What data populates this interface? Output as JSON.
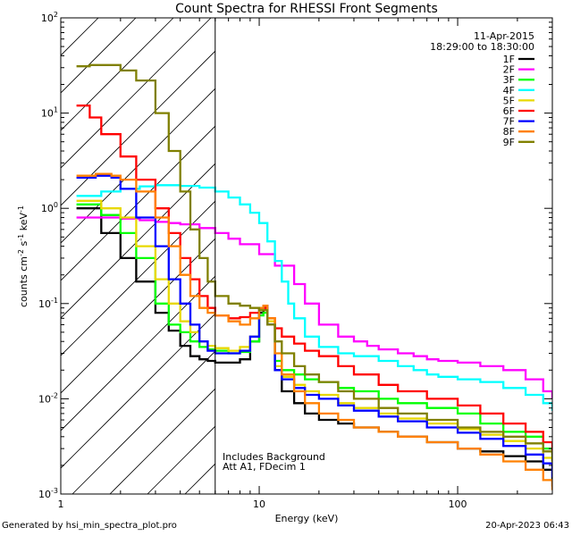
{
  "chart_data": {
    "type": "line",
    "title": "Count Spectra for RHESSI Front Segments",
    "xlabel": "Energy (keV)",
    "ylabel": "counts cm^-2 s^-1 keV^-1",
    "x_scale": "log",
    "y_scale": "log",
    "xlim": [
      1,
      300
    ],
    "ylim": [
      0.001,
      100
    ],
    "x_ticks": [
      {
        "value": 1,
        "label": "1"
      },
      {
        "value": 10,
        "label": "10"
      },
      {
        "value": 100,
        "label": "100"
      }
    ],
    "y_ticks": [
      {
        "value": 0.001,
        "base": "10",
        "exp": "-3"
      },
      {
        "value": 0.01,
        "base": "10",
        "exp": "-2"
      },
      {
        "value": 0.1,
        "base": "10",
        "exp": "-1"
      },
      {
        "value": 1,
        "base": "10",
        "exp": "0"
      },
      {
        "value": 10,
        "base": "10",
        "exp": "1"
      },
      {
        "value": 100,
        "base": "10",
        "exp": "2"
      }
    ],
    "date": "11-Apr-2015",
    "time_range": "18:29:00 to 18:30:00",
    "notes": [
      "Includes Background",
      "Att A1, FDecim 1"
    ],
    "shaded_region_xmax": 6,
    "series": [
      {
        "name": "1F",
        "color": "#000000",
        "x": [
          1.2,
          1.6,
          2.0,
          2.4,
          3.0,
          3.5,
          4.0,
          4.5,
          5.0,
          5.5,
          6.0,
          7.0,
          8.0,
          9.0,
          10.0,
          10.5,
          11.0,
          12.0,
          13.0,
          15.0,
          17.0,
          20.0,
          25.0,
          30.0,
          40.0,
          50.0,
          70.0,
          100.0,
          130.0,
          170.0,
          220.0,
          270.0,
          300.0
        ],
        "y": [
          1.0,
          0.55,
          0.3,
          0.17,
          0.08,
          0.052,
          0.036,
          0.028,
          0.026,
          0.025,
          0.024,
          0.024,
          0.026,
          0.04,
          0.08,
          0.085,
          0.06,
          0.02,
          0.012,
          0.009,
          0.007,
          0.006,
          0.0055,
          0.005,
          0.0045,
          0.004,
          0.0035,
          0.003,
          0.0028,
          0.0025,
          0.0022,
          0.0018,
          0.0012
        ]
      },
      {
        "name": "2F",
        "color": "#ff00ff",
        "x": [
          1.2,
          1.5,
          2.0,
          2.5,
          3.0,
          3.5,
          4.0,
          5.0,
          6.0,
          7.0,
          8.0,
          10.0,
          12.0,
          15.0,
          17.0,
          20.0,
          25.0,
          30.0,
          35.0,
          40.0,
          50.0,
          60.0,
          70.0,
          80.0,
          100.0,
          130.0,
          170.0,
          220.0,
          270.0,
          300.0
        ],
        "y": [
          0.8,
          0.8,
          0.78,
          0.75,
          0.72,
          0.7,
          0.68,
          0.62,
          0.55,
          0.48,
          0.42,
          0.33,
          0.25,
          0.16,
          0.1,
          0.06,
          0.045,
          0.04,
          0.036,
          0.033,
          0.03,
          0.028,
          0.026,
          0.025,
          0.024,
          0.022,
          0.02,
          0.016,
          0.012,
          0.01
        ]
      },
      {
        "name": "3F",
        "color": "#00ff00",
        "x": [
          1.2,
          1.6,
          2.0,
          2.4,
          3.0,
          3.5,
          4.0,
          4.5,
          5.0,
          5.5,
          6.0,
          7.0,
          8.0,
          9.0,
          10.0,
          10.5,
          11.0,
          12.0,
          13.0,
          15.0,
          17.0,
          20.0,
          25.0,
          30.0,
          40.0,
          50.0,
          70.0,
          100.0,
          130.0,
          170.0,
          220.0,
          270.0,
          300.0
        ],
        "y": [
          1.1,
          0.85,
          0.55,
          0.3,
          0.1,
          0.06,
          0.05,
          0.04,
          0.035,
          0.033,
          0.032,
          0.03,
          0.031,
          0.04,
          0.075,
          0.08,
          0.06,
          0.025,
          0.02,
          0.018,
          0.016,
          0.015,
          0.013,
          0.012,
          0.01,
          0.009,
          0.008,
          0.007,
          0.0055,
          0.0045,
          0.004,
          0.003,
          0.0022
        ]
      },
      {
        "name": "4F",
        "color": "#00ffff",
        "x": [
          1.2,
          1.6,
          2.0,
          2.5,
          3.0,
          3.5,
          4.0,
          5.0,
          6.0,
          7.0,
          8.0,
          9.0,
          10.0,
          11.0,
          12.0,
          13.0,
          14.0,
          15.0,
          17.0,
          20.0,
          25.0,
          30.0,
          40.0,
          50.0,
          60.0,
          70.0,
          80.0,
          100.0,
          130.0,
          170.0,
          220.0,
          270.0,
          300.0
        ],
        "y": [
          1.35,
          1.5,
          1.6,
          1.7,
          1.75,
          1.75,
          1.72,
          1.65,
          1.5,
          1.3,
          1.1,
          0.9,
          0.7,
          0.45,
          0.28,
          0.17,
          0.1,
          0.07,
          0.045,
          0.035,
          0.03,
          0.028,
          0.025,
          0.022,
          0.02,
          0.018,
          0.017,
          0.016,
          0.015,
          0.013,
          0.011,
          0.009,
          0.0075
        ]
      },
      {
        "name": "5F",
        "color": "#e8d800",
        "x": [
          1.2,
          1.6,
          2.0,
          2.4,
          3.0,
          3.5,
          4.0,
          4.5,
          5.0,
          5.5,
          6.0,
          7.0,
          8.0,
          9.0,
          10.0,
          10.5,
          11.0,
          12.0,
          13.0,
          15.0,
          17.0,
          20.0,
          25.0,
          30.0,
          40.0,
          50.0,
          70.0,
          100.0,
          130.0,
          170.0,
          220.0,
          270.0,
          300.0
        ],
        "y": [
          1.2,
          1.0,
          0.8,
          0.4,
          0.18,
          0.1,
          0.065,
          0.05,
          0.04,
          0.036,
          0.034,
          0.032,
          0.035,
          0.045,
          0.085,
          0.09,
          0.065,
          0.022,
          0.017,
          0.014,
          0.012,
          0.011,
          0.009,
          0.008,
          0.007,
          0.0062,
          0.0055,
          0.0048,
          0.0042,
          0.0036,
          0.003,
          0.0024,
          0.0018
        ]
      },
      {
        "name": "6F",
        "color": "#ff0000",
        "x": [
          1.2,
          1.4,
          1.6,
          2.0,
          2.4,
          3.0,
          3.5,
          4.0,
          4.5,
          5.0,
          5.5,
          6.0,
          7.0,
          8.0,
          9.0,
          10.0,
          11.0,
          12.0,
          13.0,
          15.0,
          17.0,
          20.0,
          25.0,
          30.0,
          40.0,
          50.0,
          70.0,
          100.0,
          130.0,
          170.0,
          220.0,
          270.0,
          300.0
        ],
        "y": [
          12.0,
          9.0,
          6.0,
          3.5,
          2.0,
          1.0,
          0.55,
          0.3,
          0.18,
          0.12,
          0.09,
          0.075,
          0.07,
          0.072,
          0.08,
          0.09,
          0.07,
          0.055,
          0.045,
          0.038,
          0.032,
          0.028,
          0.022,
          0.018,
          0.014,
          0.012,
          0.01,
          0.0085,
          0.007,
          0.0055,
          0.0045,
          0.0035,
          0.0026
        ]
      },
      {
        "name": "7F",
        "color": "#0000ff",
        "x": [
          1.2,
          1.5,
          1.8,
          2.0,
          2.4,
          3.0,
          3.5,
          4.0,
          4.5,
          5.0,
          5.5,
          6.0,
          7.0,
          8.0,
          9.0,
          10.0,
          10.5,
          11.0,
          12.0,
          13.0,
          15.0,
          17.0,
          20.0,
          25.0,
          30.0,
          40.0,
          50.0,
          70.0,
          100.0,
          130.0,
          170.0,
          220.0,
          270.0,
          300.0
        ],
        "y": [
          2.1,
          2.2,
          2.1,
          1.6,
          0.8,
          0.4,
          0.18,
          0.1,
          0.06,
          0.04,
          0.032,
          0.03,
          0.03,
          0.032,
          0.045,
          0.09,
          0.095,
          0.06,
          0.02,
          0.016,
          0.013,
          0.011,
          0.01,
          0.0085,
          0.0075,
          0.0065,
          0.0058,
          0.005,
          0.0044,
          0.0038,
          0.0032,
          0.0026,
          0.0021,
          0.0015
        ]
      },
      {
        "name": "8F",
        "color": "#ff8000",
        "x": [
          1.2,
          1.5,
          1.8,
          2.0,
          2.4,
          3.0,
          3.5,
          4.0,
          4.5,
          5.0,
          5.5,
          6.0,
          7.0,
          8.0,
          9.0,
          10.0,
          10.5,
          11.0,
          12.0,
          13.0,
          15.0,
          17.0,
          20.0,
          25.0,
          30.0,
          40.0,
          50.0,
          70.0,
          100.0,
          130.0,
          170.0,
          220.0,
          270.0,
          300.0
        ],
        "y": [
          2.2,
          2.3,
          2.2,
          2.0,
          1.5,
          0.8,
          0.4,
          0.2,
          0.12,
          0.09,
          0.08,
          0.075,
          0.065,
          0.06,
          0.07,
          0.09,
          0.095,
          0.07,
          0.03,
          0.018,
          0.012,
          0.009,
          0.007,
          0.006,
          0.005,
          0.0045,
          0.004,
          0.0035,
          0.003,
          0.0026,
          0.0022,
          0.0018,
          0.0014,
          0.0011
        ]
      },
      {
        "name": "9F",
        "color": "#808000",
        "x": [
          1.2,
          1.4,
          1.6,
          2.0,
          2.4,
          3.0,
          3.5,
          4.0,
          4.5,
          5.0,
          5.5,
          6.0,
          7.0,
          8.0,
          9.0,
          10.0,
          11.0,
          12.0,
          13.0,
          15.0,
          17.0,
          20.0,
          25.0,
          30.0,
          40.0,
          50.0,
          70.0,
          100.0,
          130.0,
          170.0,
          220.0,
          270.0,
          300.0
        ],
        "y": [
          31.0,
          32.0,
          32.0,
          28.0,
          22.0,
          10.0,
          4.0,
          1.5,
          0.6,
          0.3,
          0.17,
          0.12,
          0.1,
          0.095,
          0.09,
          0.085,
          0.06,
          0.04,
          0.03,
          0.022,
          0.018,
          0.015,
          0.012,
          0.01,
          0.008,
          0.007,
          0.006,
          0.005,
          0.0045,
          0.004,
          0.0034,
          0.0028,
          0.0022
        ]
      }
    ]
  },
  "footer": {
    "left": "Generated by hsi_min_spectra_plot.pro",
    "right": "20-Apr-2023 06:43"
  }
}
